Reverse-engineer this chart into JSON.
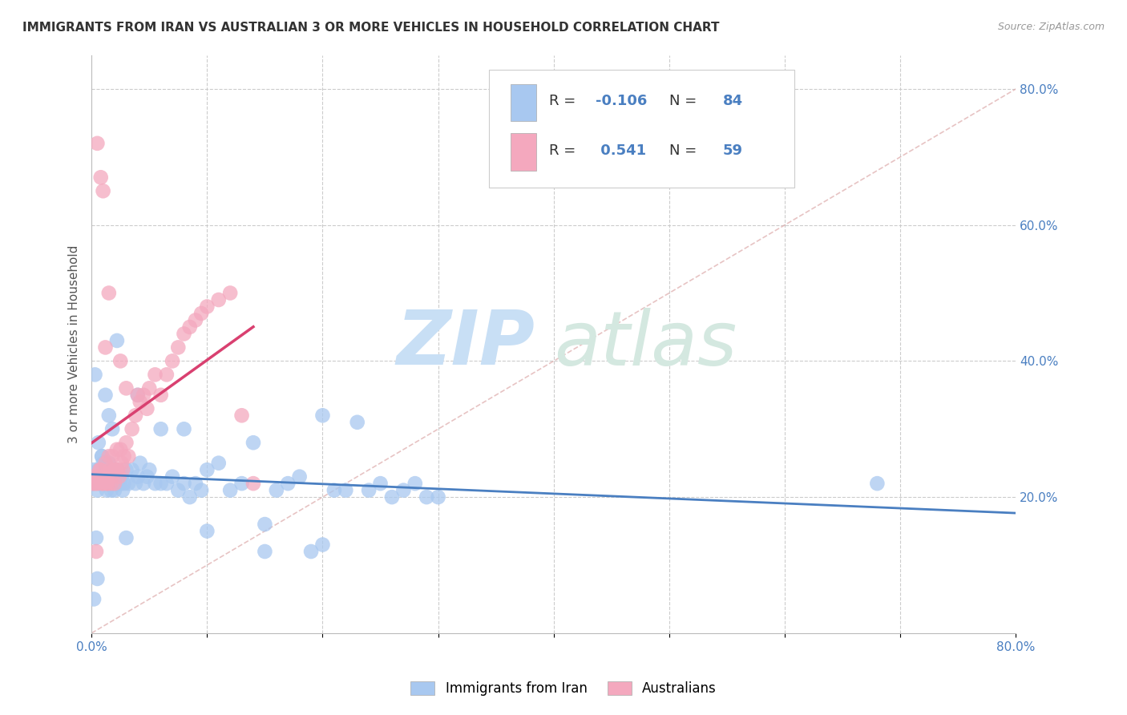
{
  "title": "IMMIGRANTS FROM IRAN VS AUSTRALIAN 3 OR MORE VEHICLES IN HOUSEHOLD CORRELATION CHART",
  "source": "Source: ZipAtlas.com",
  "ylabel": "3 or more Vehicles in Household",
  "xlim": [
    0.0,
    0.8
  ],
  "ylim": [
    0.0,
    0.85
  ],
  "y_ticks_right": [
    0.2,
    0.4,
    0.6,
    0.8
  ],
  "y_tick_labels_right": [
    "20.0%",
    "40.0%",
    "60.0%",
    "80.0%"
  ],
  "legend_label1": "Immigrants from Iran",
  "legend_label2": "Australians",
  "R1": -0.106,
  "N1": 84,
  "R2": 0.541,
  "N2": 59,
  "color_blue": "#a8c8f0",
  "color_pink": "#f4a8be",
  "color_blue_line": "#4a7fc1",
  "color_pink_line": "#d94070",
  "color_diag": "#ccaaaa",
  "watermark_zip": "ZIP",
  "watermark_atlas": "atlas",
  "blue_scatter_x": [
    0.001,
    0.002,
    0.003,
    0.004,
    0.005,
    0.006,
    0.007,
    0.008,
    0.009,
    0.01,
    0.011,
    0.012,
    0.013,
    0.014,
    0.015,
    0.016,
    0.017,
    0.018,
    0.019,
    0.02,
    0.021,
    0.022,
    0.023,
    0.024,
    0.025,
    0.026,
    0.027,
    0.028,
    0.03,
    0.032,
    0.035,
    0.038,
    0.04,
    0.042,
    0.045,
    0.048,
    0.05,
    0.055,
    0.06,
    0.065,
    0.07,
    0.075,
    0.08,
    0.085,
    0.09,
    0.095,
    0.1,
    0.11,
    0.12,
    0.13,
    0.14,
    0.15,
    0.16,
    0.17,
    0.18,
    0.19,
    0.2,
    0.21,
    0.22,
    0.23,
    0.24,
    0.25,
    0.26,
    0.27,
    0.28,
    0.29,
    0.3,
    0.003,
    0.006,
    0.009,
    0.012,
    0.015,
    0.018,
    0.022,
    0.03,
    0.04,
    0.06,
    0.08,
    0.1,
    0.15,
    0.2,
    0.68,
    0.002,
    0.005
  ],
  "blue_scatter_y": [
    0.22,
    0.24,
    0.23,
    0.14,
    0.21,
    0.24,
    0.22,
    0.23,
    0.26,
    0.25,
    0.22,
    0.23,
    0.21,
    0.22,
    0.25,
    0.22,
    0.21,
    0.24,
    0.22,
    0.21,
    0.22,
    0.24,
    0.22,
    0.23,
    0.22,
    0.23,
    0.21,
    0.22,
    0.24,
    0.22,
    0.24,
    0.22,
    0.23,
    0.25,
    0.22,
    0.23,
    0.24,
    0.22,
    0.3,
    0.22,
    0.23,
    0.21,
    0.22,
    0.2,
    0.22,
    0.21,
    0.24,
    0.25,
    0.21,
    0.22,
    0.28,
    0.16,
    0.21,
    0.22,
    0.23,
    0.12,
    0.32,
    0.21,
    0.21,
    0.31,
    0.21,
    0.22,
    0.2,
    0.21,
    0.22,
    0.2,
    0.2,
    0.38,
    0.28,
    0.26,
    0.35,
    0.32,
    0.3,
    0.43,
    0.14,
    0.35,
    0.22,
    0.3,
    0.15,
    0.12,
    0.13,
    0.22,
    0.05,
    0.08
  ],
  "pink_scatter_x": [
    0.001,
    0.002,
    0.003,
    0.004,
    0.005,
    0.006,
    0.007,
    0.008,
    0.009,
    0.01,
    0.011,
    0.012,
    0.013,
    0.014,
    0.015,
    0.016,
    0.017,
    0.018,
    0.019,
    0.02,
    0.021,
    0.022,
    0.023,
    0.024,
    0.025,
    0.026,
    0.027,
    0.028,
    0.03,
    0.032,
    0.035,
    0.038,
    0.04,
    0.042,
    0.045,
    0.048,
    0.05,
    0.055,
    0.06,
    0.065,
    0.07,
    0.075,
    0.08,
    0.085,
    0.09,
    0.095,
    0.1,
    0.11,
    0.12,
    0.13,
    0.005,
    0.008,
    0.01,
    0.012,
    0.015,
    0.02,
    0.025,
    0.03,
    0.14
  ],
  "pink_scatter_y": [
    0.22,
    0.23,
    0.22,
    0.12,
    0.22,
    0.23,
    0.24,
    0.24,
    0.22,
    0.22,
    0.23,
    0.25,
    0.22,
    0.22,
    0.26,
    0.24,
    0.22,
    0.26,
    0.24,
    0.22,
    0.24,
    0.27,
    0.24,
    0.23,
    0.27,
    0.25,
    0.24,
    0.26,
    0.28,
    0.26,
    0.3,
    0.32,
    0.35,
    0.34,
    0.35,
    0.33,
    0.36,
    0.38,
    0.35,
    0.38,
    0.4,
    0.42,
    0.44,
    0.45,
    0.46,
    0.47,
    0.48,
    0.49,
    0.5,
    0.32,
    0.72,
    0.67,
    0.65,
    0.42,
    0.5,
    0.24,
    0.4,
    0.36,
    0.22
  ]
}
